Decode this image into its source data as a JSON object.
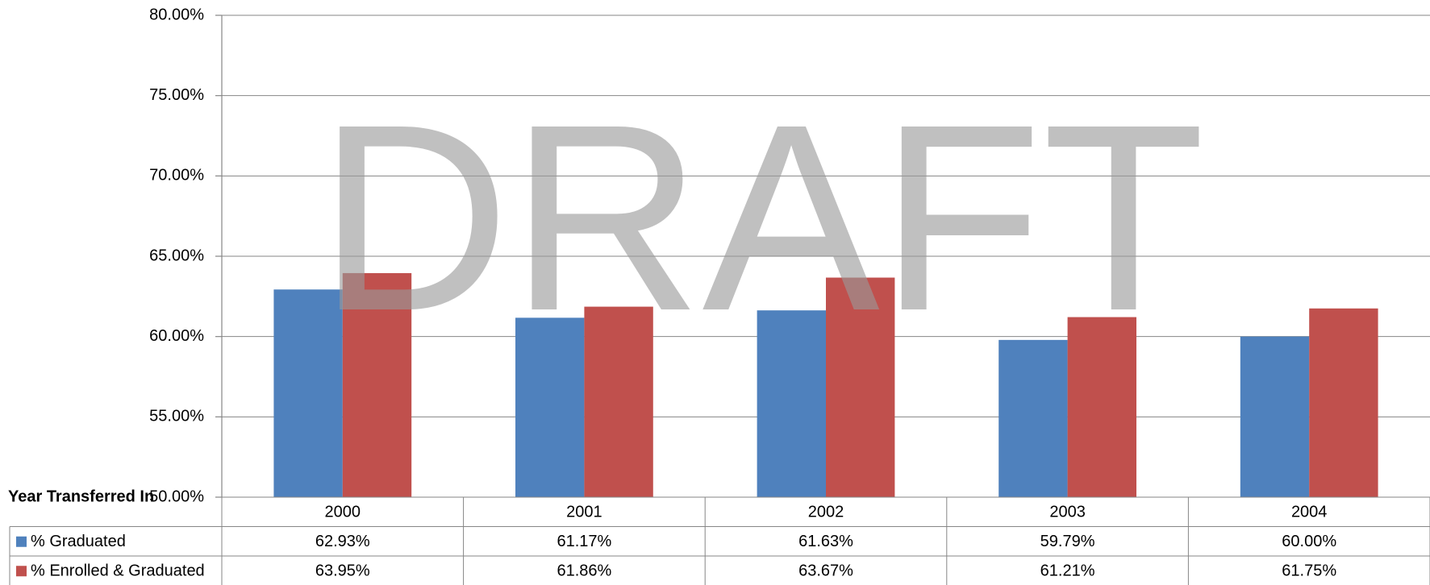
{
  "chart_data": {
    "type": "bar",
    "watermark": "DRAFT",
    "table_header": "Year Transferred In",
    "categories": [
      "2000",
      "2001",
      "2002",
      "2003",
      "2004"
    ],
    "series": [
      {
        "name": "% Graduated",
        "color": "#4f81bd",
        "values": [
          62.93,
          61.17,
          61.63,
          59.79,
          60.0
        ],
        "value_labels": [
          "62.93%",
          "61.17%",
          "61.63%",
          "59.79%",
          "60.00%"
        ]
      },
      {
        "name": "% Enrolled & Graduated",
        "color": "#c0504d",
        "values": [
          63.95,
          61.86,
          63.67,
          61.21,
          61.75
        ],
        "value_labels": [
          "63.95%",
          "61.86%",
          "63.67%",
          "61.21%",
          "61.75%"
        ]
      }
    ],
    "ylim": [
      50,
      80
    ],
    "yticks": [
      {
        "value": 50,
        "label": "50.00%"
      },
      {
        "value": 55,
        "label": "55.00%"
      },
      {
        "value": 60,
        "label": "60.00%"
      },
      {
        "value": 65,
        "label": "65.00%"
      },
      {
        "value": 70,
        "label": "70.00%"
      },
      {
        "value": 75,
        "label": "75.00%"
      },
      {
        "value": 80,
        "label": "80.00%"
      }
    ],
    "grid": true
  }
}
